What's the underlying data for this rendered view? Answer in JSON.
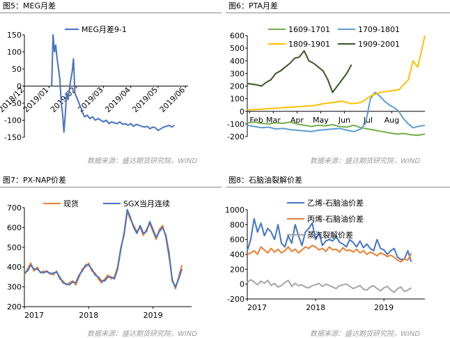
{
  "source_text": "数据来源：盛达期货研究院，WIND",
  "colors": {
    "meg": "#4472c4",
    "s1609": "#70ad47",
    "s1709": "#5b9bd5",
    "s1809": "#ffc000",
    "s1909": "#375623",
    "spot": "#ed7d31",
    "sgx": "#4472c4",
    "ethylene": "#4472c4",
    "propylene": "#ed7d31",
    "steam": "#a5a5a5"
  },
  "chart_data": [
    {
      "id": "meg",
      "panel_title": "图5：MEG月差",
      "type": "line",
      "ylim": [
        -150,
        150
      ],
      "yticks": [
        150,
        100,
        50,
        0,
        -50,
        -100,
        -150
      ],
      "zero_axis": true,
      "x_ticks": [
        "2018/12",
        "2019/01",
        "2019/02",
        "2019/03",
        "2019/04",
        "2019/05",
        "2019/06"
      ],
      "series": [
        {
          "name": "MEG月差9-1",
          "x": [
            2.0,
            2.05,
            2.1,
            2.15,
            2.2,
            2.25,
            2.3,
            2.35,
            2.4,
            2.45,
            2.5,
            2.55,
            2.6,
            2.65,
            2.7,
            2.75,
            2.8,
            2.85,
            2.9,
            2.95,
            3.0,
            3.05,
            3.1,
            3.15,
            3.2,
            3.3,
            3.4,
            3.5,
            3.6,
            3.7,
            3.8,
            3.9,
            4.0,
            4.1,
            4.2,
            4.3,
            4.4,
            4.5,
            4.6,
            4.7,
            4.8,
            4.9,
            5.0,
            5.1,
            5.2,
            5.3,
            5.4,
            5.5,
            5.6,
            5.7,
            5.8,
            5.9,
            6.0,
            6.1,
            6.2,
            6.3,
            6.4,
            6.5
          ],
          "values": [
            0,
            150,
            100,
            120,
            80,
            50,
            20,
            -50,
            -80,
            -135,
            -80,
            -20,
            -40,
            -10,
            20,
            40,
            80,
            -20,
            -30,
            -40,
            -50,
            -60,
            -70,
            -80,
            -90,
            -85,
            -95,
            -90,
            -100,
            -95,
            -100,
            -105,
            -100,
            -110,
            -105,
            -108,
            -110,
            -105,
            -112,
            -110,
            -115,
            -110,
            -118,
            -112,
            -115,
            -118,
            -120,
            -118,
            -125,
            -120,
            -122,
            -130,
            -125,
            -120,
            -118,
            -115,
            -120,
            -115
          ]
        }
      ]
    },
    {
      "id": "pta",
      "panel_title": "图6：PTA月差",
      "type": "line",
      "ylim": [
        -200,
        600
      ],
      "yticks": [
        600,
        500,
        400,
        300,
        200,
        100,
        0,
        -100,
        -200
      ],
      "zero_axis": true,
      "x_ticks": [
        "Feb",
        "Mar",
        "Apr",
        "May",
        "Jun",
        "Jul",
        "Aug"
      ],
      "series": [
        {
          "name": "1609-1701",
          "x": [
            0,
            0.3,
            0.6,
            0.9,
            1.2,
            1.5,
            1.8,
            2.1,
            2.4,
            2.7,
            3.0,
            3.3,
            3.6,
            3.9,
            4.2,
            4.5,
            4.8,
            5.1,
            5.4,
            5.7,
            6.0,
            6.3,
            6.6,
            6.9,
            7.2,
            7.5
          ],
          "values": [
            -90,
            -85,
            -95,
            -100,
            -90,
            -95,
            -85,
            -100,
            -110,
            -120,
            -110,
            -115,
            -105,
            -120,
            -125,
            -110,
            -130,
            -140,
            -150,
            -160,
            -170,
            -180,
            -175,
            -185,
            -190,
            -180
          ]
        },
        {
          "name": "1709-1801",
          "x": [
            0,
            0.3,
            0.6,
            0.9,
            1.2,
            1.5,
            1.8,
            2.1,
            2.4,
            2.7,
            3.0,
            3.3,
            3.6,
            3.9,
            4.2,
            4.5,
            4.8,
            5.0,
            5.2,
            5.4,
            5.6,
            5.8,
            6.0,
            6.2,
            6.4,
            6.6,
            6.8,
            7.0,
            7.2,
            7.5
          ],
          "values": [
            -110,
            -120,
            -130,
            -125,
            -140,
            -135,
            -145,
            -150,
            -155,
            -160,
            -150,
            -145,
            -140,
            -135,
            -150,
            -160,
            -140,
            -90,
            100,
            150,
            120,
            80,
            50,
            30,
            0,
            -60,
            -100,
            -130,
            -120,
            -110
          ]
        },
        {
          "name": "1809-1901",
          "x": [
            0,
            0.4,
            0.8,
            1.2,
            1.6,
            2.0,
            2.4,
            2.8,
            3.2,
            3.6,
            4.0,
            4.4,
            4.8,
            5.2,
            5.6,
            6.0,
            6.4,
            6.8,
            7.0,
            7.2,
            7.5
          ],
          "values": [
            10,
            15,
            20,
            25,
            30,
            35,
            40,
            45,
            60,
            70,
            80,
            60,
            70,
            120,
            150,
            160,
            170,
            250,
            400,
            350,
            600
          ]
        },
        {
          "name": "1909-2001",
          "x": [
            0,
            0.2,
            0.4,
            0.6,
            0.8,
            1.0,
            1.2,
            1.4,
            1.6,
            1.8,
            2.0,
            2.2,
            2.4,
            2.6,
            2.8,
            3.0,
            3.2,
            3.4,
            3.6,
            3.8,
            4.0,
            4.2,
            4.4
          ],
          "values": [
            220,
            215,
            210,
            200,
            230,
            250,
            300,
            320,
            350,
            380,
            420,
            430,
            480,
            400,
            380,
            350,
            320,
            250,
            150,
            200,
            250,
            300,
            370
          ]
        }
      ]
    },
    {
      "id": "pxnap",
      "panel_title": "图7：PX-NAP价差",
      "type": "line",
      "ylim": [
        200,
        700
      ],
      "yticks": [
        700,
        600,
        500,
        400,
        300,
        200
      ],
      "zero_axis": false,
      "x_ticks": [
        "2017",
        "2018",
        "2019"
      ],
      "series": [
        {
          "name": "现货",
          "x": [
            0,
            0.05,
            0.1,
            0.15,
            0.2,
            0.25,
            0.3,
            0.35,
            0.4,
            0.45,
            0.5,
            0.55,
            0.6,
            0.65,
            0.7,
            0.75,
            0.8,
            0.85,
            0.9,
            0.95,
            1.0,
            1.05,
            1.1,
            1.15,
            1.2,
            1.25,
            1.3,
            1.35,
            1.4,
            1.45,
            1.5,
            1.55,
            1.6,
            1.65,
            1.7,
            1.75,
            1.8,
            1.85,
            1.9,
            1.95,
            2.0,
            2.05,
            2.1,
            2.15,
            2.2,
            2.25,
            2.3,
            2.35,
            2.4,
            2.45
          ],
          "values": [
            360,
            390,
            420,
            380,
            400,
            370,
            380,
            375,
            370,
            360,
            380,
            340,
            330,
            310,
            320,
            330,
            310,
            350,
            390,
            400,
            420,
            380,
            370,
            340,
            320,
            340,
            360,
            340,
            350,
            400,
            500,
            560,
            680,
            640,
            610,
            580,
            600,
            560,
            590,
            620,
            580,
            540,
            590,
            610,
            550,
            450,
            340,
            290,
            350,
            410
          ]
        },
        {
          "name": "SGX当月连续",
          "x": [
            0,
            0.05,
            0.1,
            0.15,
            0.2,
            0.25,
            0.3,
            0.35,
            0.4,
            0.45,
            0.5,
            0.55,
            0.6,
            0.65,
            0.7,
            0.75,
            0.8,
            0.85,
            0.9,
            0.95,
            1.0,
            1.05,
            1.1,
            1.15,
            1.2,
            1.25,
            1.3,
            1.35,
            1.4,
            1.45,
            1.5,
            1.55,
            1.6,
            1.65,
            1.7,
            1.75,
            1.8,
            1.85,
            1.9,
            1.95,
            2.0,
            2.05,
            2.1,
            2.15,
            2.2,
            2.25,
            2.3,
            2.35,
            2.4,
            2.45
          ],
          "values": [
            370,
            380,
            410,
            390,
            390,
            375,
            370,
            380,
            365,
            370,
            375,
            350,
            320,
            315,
            310,
            325,
            320,
            360,
            380,
            410,
            410,
            390,
            360,
            350,
            330,
            330,
            350,
            350,
            340,
            390,
            490,
            570,
            690,
            650,
            600,
            570,
            610,
            570,
            580,
            630,
            590,
            550,
            580,
            600,
            560,
            470,
            330,
            300,
            340,
            390
          ]
        }
      ]
    },
    {
      "id": "naphtha",
      "panel_title": "图8：石脑油裂解价差",
      "type": "line",
      "ylim": [
        -200,
        1000
      ],
      "yticks": [
        1000,
        800,
        600,
        400,
        200,
        0,
        -200
      ],
      "zero_axis": false,
      "x_ticks": [
        "2017",
        "2018",
        "2019"
      ],
      "series": [
        {
          "name": "乙烯-石脑油价差",
          "x": [
            0,
            0.05,
            0.1,
            0.15,
            0.2,
            0.25,
            0.3,
            0.35,
            0.4,
            0.45,
            0.5,
            0.55,
            0.6,
            0.65,
            0.7,
            0.75,
            0.8,
            0.85,
            0.9,
            0.95,
            1.0,
            1.05,
            1.1,
            1.15,
            1.2,
            1.25,
            1.3,
            1.35,
            1.4,
            1.45,
            1.5,
            1.55,
            1.6,
            1.65,
            1.7,
            1.75,
            1.8,
            1.85,
            1.9,
            1.95,
            2.0,
            2.05,
            2.1,
            2.15,
            2.2,
            2.25,
            2.3,
            2.35,
            2.4
          ],
          "values": [
            450,
            600,
            880,
            700,
            820,
            650,
            750,
            700,
            600,
            800,
            550,
            500,
            650,
            550,
            800,
            650,
            520,
            700,
            750,
            820,
            600,
            680,
            520,
            580,
            600,
            580,
            640,
            560,
            540,
            500,
            600,
            560,
            500,
            580,
            490,
            540,
            480,
            450,
            600,
            480,
            460,
            400,
            450,
            480,
            360,
            330,
            340,
            450,
            300
          ]
        },
        {
          "name": "丙烯-石脑油价差",
          "x": [
            0,
            0.05,
            0.1,
            0.15,
            0.2,
            0.25,
            0.3,
            0.35,
            0.4,
            0.45,
            0.5,
            0.55,
            0.6,
            0.65,
            0.7,
            0.75,
            0.8,
            0.85,
            0.9,
            0.95,
            1.0,
            1.05,
            1.1,
            1.15,
            1.2,
            1.25,
            1.3,
            1.35,
            1.4,
            1.45,
            1.5,
            1.55,
            1.6,
            1.65,
            1.7,
            1.75,
            1.8,
            1.85,
            1.9,
            1.95,
            2.0,
            2.05,
            2.1,
            2.15,
            2.2,
            2.25,
            2.3,
            2.35,
            2.4
          ],
          "values": [
            400,
            420,
            450,
            400,
            500,
            460,
            420,
            480,
            430,
            470,
            420,
            450,
            500,
            440,
            470,
            420,
            460,
            500,
            480,
            520,
            500,
            460,
            480,
            440,
            500,
            460,
            470,
            430,
            490,
            450,
            460,
            430,
            470,
            420,
            450,
            400,
            430,
            410,
            380,
            420,
            400,
            370,
            390,
            360,
            320,
            300,
            340,
            320,
            420
          ]
        },
        {
          "name": "蒸汽裂解价差",
          "x": [
            0,
            0.05,
            0.1,
            0.15,
            0.2,
            0.25,
            0.3,
            0.35,
            0.4,
            0.45,
            0.5,
            0.55,
            0.6,
            0.65,
            0.7,
            0.75,
            0.8,
            0.85,
            0.9,
            0.95,
            1.0,
            1.05,
            1.1,
            1.15,
            1.2,
            1.25,
            1.3,
            1.35,
            1.4,
            1.45,
            1.5,
            1.55,
            1.6,
            1.65,
            1.7,
            1.75,
            1.8,
            1.85,
            1.9,
            1.95,
            2.0,
            2.05,
            2.1,
            2.15,
            2.2,
            2.25,
            2.3,
            2.35,
            2.4
          ],
          "values": [
            20,
            60,
            30,
            -10,
            40,
            10,
            50,
            -20,
            10,
            -40,
            -20,
            20,
            50,
            -30,
            10,
            -20,
            -10,
            -40,
            -50,
            -20,
            -10,
            10,
            -30,
            0,
            -20,
            -40,
            -60,
            -20,
            -10,
            0,
            -30,
            -60,
            -40,
            -20,
            -70,
            -80,
            -40,
            -20,
            -60,
            -90,
            -50,
            -30,
            -80,
            -110,
            -60,
            -40,
            -100,
            -80,
            -50
          ]
        }
      ]
    }
  ]
}
